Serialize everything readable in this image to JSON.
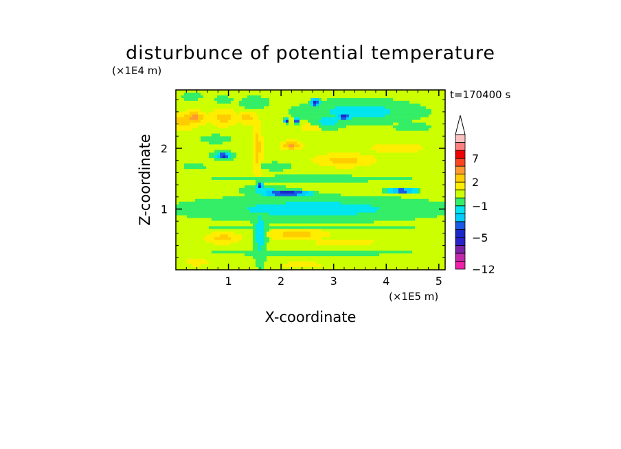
{
  "chart_data": {
    "type": "heatmap",
    "title": "disturbunce of potential temperature",
    "xlabel": "X-coordinate",
    "ylabel": "Z-coordinate",
    "x_unit": "(×1E5 m)",
    "y_unit": "(×1E4 m)",
    "time_label": "t=170400 s",
    "xlim": [
      0,
      5.12
    ],
    "ylim": [
      0,
      2.96
    ],
    "x_ticks": [
      1,
      2,
      3,
      4,
      5
    ],
    "y_ticks": [
      1,
      2
    ],
    "colorbar": {
      "levels": [
        -12,
        -10,
        -8,
        -6,
        -5,
        -4,
        -3,
        -2,
        -1,
        0,
        1,
        2,
        3,
        5,
        7,
        9,
        11
      ],
      "colors": [
        "#ee22aa",
        "#c02aa8",
        "#7a22a8",
        "#2a22c8",
        "#1a28c8",
        "#1a5ae6",
        "#00ccff",
        "#00e5ee",
        "#33ee66",
        "#ccff00",
        "#ffee00",
        "#ffcc00",
        "#ff9933",
        "#ff4422",
        "#ee0000",
        "#ff8080",
        "#ffc0c0"
      ],
      "labels": [
        {
          "value": -12,
          "text": "−12"
        },
        {
          "value": -5,
          "text": "−5"
        },
        {
          "value": -1,
          "text": "−1"
        },
        {
          "value": 2,
          "text": "2"
        },
        {
          "value": 7,
          "text": "7"
        }
      ],
      "extend": "max"
    },
    "background_level": 0.5,
    "features": [
      {
        "x": 0.15,
        "z": 2.45,
        "rx": 0.35,
        "rz": 0.15,
        "value": 2.5
      },
      {
        "x": 0.35,
        "z": 2.5,
        "rx": 0.25,
        "rz": 0.12,
        "value": 3.5
      },
      {
        "x": 0.9,
        "z": 2.5,
        "rx": 0.3,
        "rz": 0.15,
        "value": 2.5
      },
      {
        "x": 1.35,
        "z": 2.5,
        "rx": 0.2,
        "rz": 0.12,
        "value": 2.5
      },
      {
        "x": 0.3,
        "z": 2.85,
        "rx": 0.3,
        "rz": 0.08,
        "value": -0.5
      },
      {
        "x": 0.9,
        "z": 2.8,
        "rx": 0.25,
        "rz": 0.08,
        "value": -0.5
      },
      {
        "x": 1.5,
        "z": 2.75,
        "rx": 0.4,
        "rz": 0.15,
        "value": -0.5
      },
      {
        "x": 3.5,
        "z": 2.6,
        "rx": 1.3,
        "rz": 0.22,
        "value": -1.5
      },
      {
        "x": 2.9,
        "z": 2.45,
        "rx": 0.4,
        "rz": 0.15,
        "value": -1.5
      },
      {
        "x": 2.65,
        "z": 2.75,
        "rx": 0.1,
        "rz": 0.08,
        "value": -5
      },
      {
        "x": 3.2,
        "z": 2.52,
        "rx": 0.15,
        "rz": 0.06,
        "value": -5
      },
      {
        "x": 2.3,
        "z": 2.45,
        "rx": 0.05,
        "rz": 0.05,
        "value": -5
      },
      {
        "x": 2.1,
        "z": 2.45,
        "rx": 0.05,
        "rz": 0.05,
        "value": -5
      },
      {
        "x": 4.5,
        "z": 2.35,
        "rx": 0.5,
        "rz": 0.1,
        "value": -0.5
      },
      {
        "x": 0.75,
        "z": 2.15,
        "rx": 0.4,
        "rz": 0.1,
        "value": -0.5
      },
      {
        "x": 0.9,
        "z": 1.88,
        "rx": 0.25,
        "rz": 0.08,
        "value": -2
      },
      {
        "x": 0.9,
        "z": 1.88,
        "rx": 0.15,
        "rz": 0.05,
        "value": -5
      },
      {
        "x": 0.35,
        "z": 1.7,
        "rx": 0.3,
        "rz": 0.08,
        "value": -0.5
      },
      {
        "x": 1.9,
        "z": 1.7,
        "rx": 0.4,
        "rz": 0.1,
        "value": -0.5
      },
      {
        "x": 2.2,
        "z": 2.05,
        "rx": 0.2,
        "rz": 0.08,
        "value": 3.5
      },
      {
        "x": 3.2,
        "z": 1.8,
        "rx": 0.6,
        "rz": 0.12,
        "value": 2.5
      },
      {
        "x": 4.2,
        "z": 2.0,
        "rx": 0.7,
        "rz": 0.1,
        "value": 1.5
      },
      {
        "x": 2.6,
        "z": 2.35,
        "rx": 0.3,
        "rz": 0.1,
        "value": 1.5
      },
      {
        "x": 2.6,
        "z": 1.5,
        "rx": 2.6,
        "rz": 0.07,
        "value": -0.5
      },
      {
        "x": 2.6,
        "z": 1.0,
        "rx": 2.7,
        "rz": 0.23,
        "value": -1.5
      },
      {
        "x": 1.7,
        "z": 1.3,
        "rx": 0.5,
        "rz": 0.1,
        "value": -1.5
      },
      {
        "x": 2.1,
        "z": 1.26,
        "rx": 0.55,
        "rz": 0.06,
        "value": -5
      },
      {
        "x": 4.3,
        "z": 1.3,
        "rx": 0.35,
        "rz": 0.04,
        "value": -5
      },
      {
        "x": 1.6,
        "z": 1.38,
        "rx": 0.07,
        "rz": 0.06,
        "value": -5
      },
      {
        "x": 2.6,
        "z": 0.7,
        "rx": 2.7,
        "rz": 0.05,
        "value": -0.5
      },
      {
        "x": 0.9,
        "z": 0.52,
        "rx": 0.35,
        "rz": 0.1,
        "value": 2.5
      },
      {
        "x": 2.3,
        "z": 0.58,
        "rx": 0.6,
        "rz": 0.1,
        "value": 2.5
      },
      {
        "x": 3.2,
        "z": 0.45,
        "rx": 0.8,
        "rz": 0.08,
        "value": 1.5
      },
      {
        "x": 2.6,
        "z": 0.28,
        "rx": 2.7,
        "rz": 0.06,
        "value": -0.5
      },
      {
        "x": 0.4,
        "z": 0.12,
        "rx": 0.3,
        "rz": 0.08,
        "value": 1.5
      },
      {
        "x": 2.4,
        "z": 0.08,
        "rx": 0.5,
        "rz": 0.06,
        "value": 1.5
      },
      {
        "x": 1.6,
        "z": 0.6,
        "rx": 0.15,
        "rz": 0.6,
        "value": -1.5
      },
      {
        "x": 1.55,
        "z": 2.0,
        "rx": 0.1,
        "rz": 0.5,
        "value": 2.5
      }
    ]
  }
}
